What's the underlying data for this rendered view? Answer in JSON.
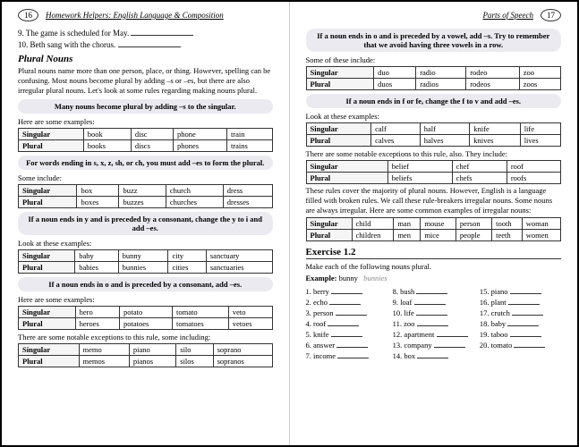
{
  "left": {
    "page_num": "16",
    "header": "Homework Helpers: English Language & Composition",
    "q9": "9.  The game is scheduled for May.",
    "q10": "10.  Beth sang with the chorus.",
    "section": "Plural Nouns",
    "intro": "Plural nouns name more than one person, place, or thing. However, spelling can be confusing. Most nouns become plural by adding –s or –es, but there are also irregular plural nouns. Let's look at some rules regarding making nouns plural.",
    "rule1": "Many nouns become plural by adding –s to the singular.",
    "examples_label": "Here are some examples:",
    "t1": {
      "sing": [
        "book",
        "disc",
        "phone",
        "train"
      ],
      "plur": [
        "books",
        "discs",
        "phones",
        "trains"
      ]
    },
    "rule2": "For words ending in s, x, z, sh, or ch, you must add –es to form the plural.",
    "some_include": "Some include:",
    "t2": {
      "sing": [
        "box",
        "buzz",
        "church",
        "dress"
      ],
      "plur": [
        "boxes",
        "buzzes",
        "churches",
        "dresses"
      ]
    },
    "rule3": "If a noun ends in y and is preceded by a consonant, change the y to i and add –es.",
    "look_at": "Look at these examples:",
    "t3": {
      "sing": [
        "baby",
        "bunny",
        "city",
        "sanctuary"
      ],
      "plur": [
        "babies",
        "bunnies",
        "cities",
        "sanctuaries"
      ]
    },
    "rule4": "If a noun ends in o and is preceded by a consonant, add –es.",
    "t4": {
      "sing": [
        "hero",
        "potato",
        "tomato",
        "veto"
      ],
      "plur": [
        "heroes",
        "potatoes",
        "tomatoes",
        "vetoes"
      ]
    },
    "exceptions_label": "There are some notable exceptions to this rule, some including:",
    "t5": {
      "sing": [
        "memo",
        "piano",
        "silo",
        "soprano"
      ],
      "plur": [
        "memos",
        "pianos",
        "silos",
        "sopranos"
      ]
    }
  },
  "right": {
    "page_num": "17",
    "header": "Parts of Speech",
    "rule5": "If a noun ends in o and is preceded by a vowel, add –s. Try to remember that we avoid having three vowels in a row.",
    "some_of": "Some of these include:",
    "t6": {
      "sing": [
        "duo",
        "radio",
        "rodeo",
        "zoo"
      ],
      "plur": [
        "duos",
        "radios",
        "rodeos",
        "zoos"
      ]
    },
    "rule6": "If a noun ends in f or fe, change the f to v and add –es.",
    "look_at": "Look at these examples:",
    "t7": {
      "sing": [
        "calf",
        "half",
        "knife",
        "life"
      ],
      "plur": [
        "calves",
        "halves",
        "knives",
        "lives"
      ]
    },
    "exceptions2": "There are some notable exceptions to this rule, also. They include:",
    "t8": {
      "sing": [
        "belief",
        "chef",
        "roof"
      ],
      "plur": [
        "beliefs",
        "chefs",
        "roofs"
      ]
    },
    "para": "These rules cover the majority of plural nouns. However, English is a language filled with broken rules. We call these rule-breakers irregular nouns. Some nouns are always irregular. Here are some common examples of irregular nouns:",
    "t9": {
      "sing": [
        "child",
        "man",
        "mouse",
        "person",
        "tooth",
        "woman"
      ],
      "plur": [
        "children",
        "men",
        "mice",
        "people",
        "teeth",
        "women"
      ]
    },
    "exercise_title": "Exercise 1.2",
    "exercise_instr": "Make each of the following nouns plural.",
    "example_label": "Example:",
    "example_word": "bunny",
    "example_ans": "bunnies",
    "items": [
      "1. berry",
      "2. echo",
      "3. person",
      "4. roof",
      "5. knife",
      "6. answer",
      "7. income",
      "8. bush",
      "9. loaf",
      "10. life",
      "11. zoo",
      "12. apartment",
      "13. company",
      "14. box",
      "15. piano",
      "16. plant",
      "17. crutch",
      "18. baby",
      "19. taboo",
      "20. tomato"
    ]
  },
  "row_labels": {
    "sing": "Singular",
    "plur": "Plural"
  }
}
